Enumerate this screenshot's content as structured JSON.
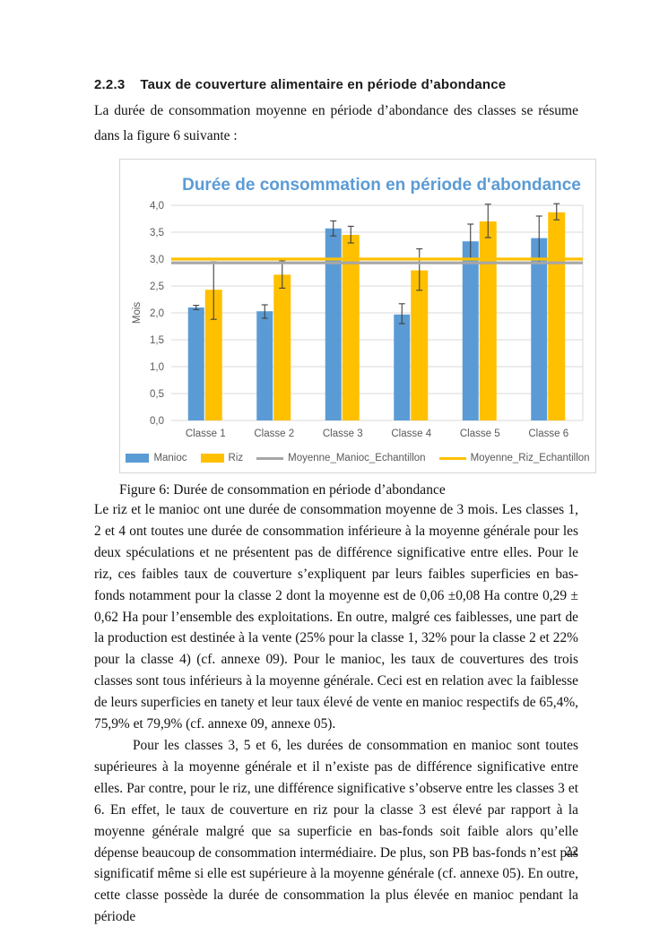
{
  "page": {
    "number": "22"
  },
  "heading": {
    "number": "2.2.3",
    "title": "Taux de couverture alimentaire en période d’abondance"
  },
  "intro": "La durée de consommation moyenne en période d’abondance des classes se résume dans la figure 6 suivante :",
  "figure": {
    "caption": "Figure 6: Durée de consommation en période d’abondance"
  },
  "chart_data": {
    "type": "bar",
    "title": "Durée de consommation en période d'abondance",
    "ylabel": "Mois",
    "categories": [
      "Classe 1",
      "Classe 2",
      "Classe 3",
      "Classe 4",
      "Classe 5",
      "Classe 6"
    ],
    "series": [
      {
        "name": "Manioc",
        "color": "#5B9BD5",
        "values": [
          2.1,
          2.03,
          3.57,
          1.97,
          3.33,
          3.39
        ],
        "error_low": [
          2.06,
          1.9,
          3.43,
          1.8,
          3.0,
          2.92
        ],
        "error_high": [
          2.14,
          2.15,
          3.71,
          2.17,
          3.65,
          3.8
        ]
      },
      {
        "name": "Riz",
        "color": "#FFC000",
        "values": [
          2.43,
          2.71,
          3.45,
          2.79,
          3.7,
          3.87
        ],
        "error_low": [
          1.88,
          2.46,
          3.3,
          2.42,
          3.4,
          3.73
        ],
        "error_high": [
          2.95,
          2.97,
          3.61,
          3.19,
          4.02,
          4.03
        ]
      }
    ],
    "lines": [
      {
        "name": "Moyenne_Manioc_Echantillon",
        "color": "#A6A6A6",
        "value": 2.93
      },
      {
        "name": "Moyenne_Riz_Echantillon",
        "color": "#FFC000",
        "value": 3.0
      }
    ],
    "ylim": [
      0,
      4
    ],
    "ytick_step": 0.5,
    "ytick_labels": [
      "0,0",
      "0,5",
      "1,0",
      "1,5",
      "2,0",
      "2,5",
      "3,0",
      "3,5",
      "4,0"
    ],
    "grid": "horizontal",
    "legend_position": "bottom",
    "colors": {
      "title": "#5B9BD5",
      "grid": "#D9D9D9",
      "axis_text": "#595959",
      "error_bar": "#404040"
    }
  },
  "paragraphs": [
    "Le riz et le manioc ont une durée de consommation moyenne de 3 mois. Les classes 1, 2 et 4 ont toutes une durée de consommation inférieure à la moyenne générale pour les deux spéculations et ne présentent pas de différence significative entre elles. Pour le riz, ces faibles taux de couverture s’expliquent par leurs faibles superficies en bas-fonds notamment pour la classe 2 dont la moyenne est de 0,06 ±0,08 Ha contre 0,29 ± 0,62 Ha pour l’ensemble des exploitations. En outre, malgré ces faiblesses, une part de la production est destinée à la vente (25% pour la classe 1, 32% pour la classe 2 et 22% pour la classe 4) (cf. annexe 09). Pour le manioc, les taux de couvertures des trois classes sont tous inférieurs à la moyenne générale. Ceci est en relation avec la faiblesse de leurs superficies en tanety et leur taux élevé de vente en manioc respectifs de 65,4%, 75,9% et 79,9% (cf. annexe 09, annexe 05).",
    "Pour les classes 3, 5 et 6, les durées de consommation en manioc sont toutes supérieures à la moyenne générale et il n’existe pas de différence significative entre elles. Par contre, pour le riz, une différence significative s’observe entre les classes 3 et 6. En effet, le taux de couverture en riz pour la classe 3 est élevé par rapport à la moyenne générale malgré que sa superficie en bas-fonds soit faible alors qu’elle dépense beaucoup de consommation intermédiaire. De plus, son PB bas-fonds n’est pas significatif même si elle est supérieure à la moyenne générale (cf. annexe 05). En outre, cette classe possède la durée de consommation la plus élevée en manioc pendant la période"
  ]
}
